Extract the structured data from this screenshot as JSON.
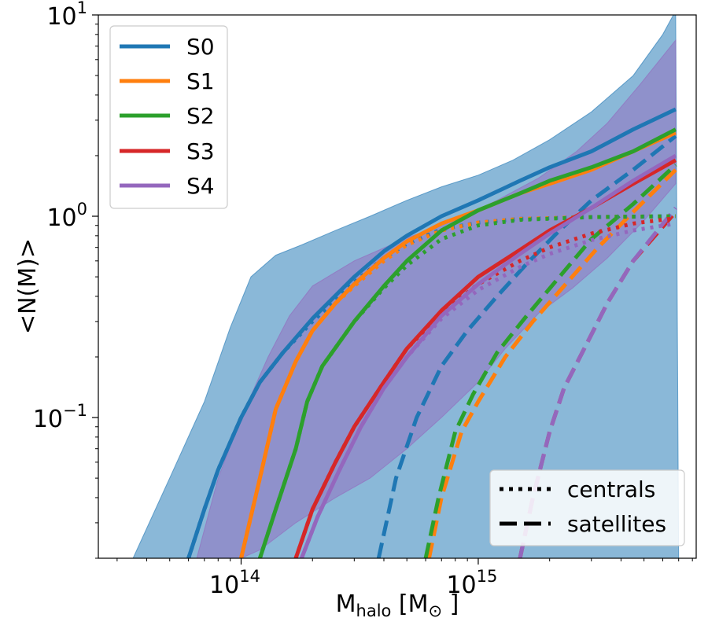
{
  "chart_data": {
    "type": "line",
    "title": "",
    "xlabel": {
      "main": "M",
      "sub": "halo",
      "unit_open": " [M",
      "unit_sub": "⊙",
      "unit_close": " ]"
    },
    "ylabel": "<N(M)>",
    "xscale": "log",
    "yscale": "log",
    "xlim": [
      25000000000000,
      8300000000000000
    ],
    "ylim": [
      0.02,
      10
    ],
    "x_ticks": [
      {
        "value": 100000000000000,
        "label_base": "10",
        "label_exp": "14"
      },
      {
        "value": 1000000000000000,
        "label_base": "10",
        "label_exp": "15"
      }
    ],
    "y_ticks": [
      {
        "value": 0.1,
        "label_base": "10",
        "label_exp": "−1"
      },
      {
        "value": 1,
        "label_base": "10",
        "label_exp": "0"
      },
      {
        "value": 10,
        "label_base": "10",
        "label_exp": "1"
      }
    ],
    "grid": false,
    "bands": [
      {
        "of": "S0",
        "color": "#1f77b4",
        "opacity": 0.52,
        "upper": [
          [
            35000000000000,
            0.02
          ],
          [
            50000000000000,
            0.05
          ],
          [
            70000000000000,
            0.12
          ],
          [
            90000000000000,
            0.28
          ],
          [
            110000000000000,
            0.5
          ],
          [
            140000000000000,
            0.64
          ],
          [
            180000000000000,
            0.72
          ],
          [
            250000000000000,
            0.85
          ],
          [
            350000000000000,
            1.0
          ],
          [
            500000000000000,
            1.2
          ],
          [
            700000000000000,
            1.4
          ],
          [
            1000000000000000,
            1.6
          ],
          [
            1400000000000000,
            1.9
          ],
          [
            2000000000000000,
            2.4
          ],
          [
            3000000000000000,
            3.3
          ],
          [
            4500000000000000,
            5.0
          ],
          [
            6000000000000000,
            8.0
          ],
          [
            6800000000000000,
            10.5
          ]
        ],
        "lower": [
          [
            7000000000000000,
            0.02
          ],
          [
            6800000000000000,
            0.02
          ]
        ]
      },
      {
        "of": "S4",
        "color": "#9467bd",
        "opacity": 0.48,
        "upper": [
          [
            65000000000000,
            0.02
          ],
          [
            80000000000000,
            0.05
          ],
          [
            100000000000000,
            0.1
          ],
          [
            130000000000000,
            0.2
          ],
          [
            160000000000000,
            0.32
          ],
          [
            200000000000000,
            0.45
          ],
          [
            300000000000000,
            0.6
          ],
          [
            500000000000000,
            0.78
          ],
          [
            800000000000000,
            0.96
          ],
          [
            1200000000000000,
            1.2
          ],
          [
            1800000000000000,
            1.55
          ],
          [
            2600000000000000,
            2.1
          ],
          [
            3500000000000000,
            2.9
          ],
          [
            4800000000000000,
            4.5
          ],
          [
            6800000000000000,
            7.5
          ]
        ],
        "lower": [
          [
            6800000000000000,
            1.45
          ],
          [
            5000000000000000,
            0.95
          ],
          [
            3500000000000000,
            0.62
          ],
          [
            2500000000000000,
            0.44
          ],
          [
            1800000000000000,
            0.33
          ],
          [
            1300000000000000,
            0.22
          ],
          [
            1000000000000000,
            0.15
          ],
          [
            700000000000000,
            0.1
          ],
          [
            500000000000000,
            0.07
          ],
          [
            350000000000000,
            0.05
          ],
          [
            250000000000000,
            0.04
          ],
          [
            170000000000000,
            0.03
          ],
          [
            120000000000000,
            0.022
          ],
          [
            100000000000000,
            0.02
          ]
        ]
      }
    ],
    "legend": {
      "placement": "upper left",
      "entries": [
        "S0",
        "S1",
        "S2",
        "S3",
        "S4"
      ]
    },
    "style_legend": {
      "placement": "lower right",
      "entries": [
        {
          "label": "centrals",
          "style": "dotted"
        },
        {
          "label": "satellites",
          "style": "dashed"
        }
      ]
    },
    "series": [
      {
        "name": "S0",
        "color": "#1f77b4",
        "total": [
          [
            60000000000000,
            0.02
          ],
          [
            70000000000000,
            0.035
          ],
          [
            80000000000000,
            0.055
          ],
          [
            100000000000000,
            0.1
          ],
          [
            120000000000000,
            0.15
          ],
          [
            150000000000000,
            0.21
          ],
          [
            200000000000000,
            0.31
          ],
          [
            300000000000000,
            0.5
          ],
          [
            400000000000000,
            0.67
          ],
          [
            500000000000000,
            0.8
          ],
          [
            700000000000000,
            1.0
          ],
          [
            1000000000000000,
            1.2
          ],
          [
            1500000000000000,
            1.5
          ],
          [
            2000000000000000,
            1.75
          ],
          [
            3000000000000000,
            2.1
          ],
          [
            4500000000000000,
            2.7
          ],
          [
            6800000000000000,
            3.4
          ]
        ],
        "centrals": [
          [
            60000000000000,
            0.02
          ],
          [
            70000000000000,
            0.035
          ],
          [
            80000000000000,
            0.055
          ],
          [
            100000000000000,
            0.1
          ],
          [
            120000000000000,
            0.15
          ],
          [
            150000000000000,
            0.21
          ],
          [
            200000000000000,
            0.3
          ],
          [
            300000000000000,
            0.47
          ],
          [
            400000000000000,
            0.62
          ],
          [
            500000000000000,
            0.73
          ],
          [
            700000000000000,
            0.86
          ],
          [
            1000000000000000,
            0.93
          ],
          [
            1500000000000000,
            0.97
          ],
          [
            3000000000000000,
            0.99
          ],
          [
            6800000000000000,
            1.0
          ]
        ],
        "satellites": [
          [
            380000000000000,
            0.02
          ],
          [
            450000000000000,
            0.05
          ],
          [
            550000000000000,
            0.1
          ],
          [
            700000000000000,
            0.18
          ],
          [
            900000000000000,
            0.27
          ],
          [
            1200000000000000,
            0.4
          ],
          [
            1600000000000000,
            0.58
          ],
          [
            2200000000000000,
            0.85
          ],
          [
            3000000000000000,
            1.2
          ],
          [
            4500000000000000,
            1.7
          ],
          [
            6800000000000000,
            2.5
          ]
        ]
      },
      {
        "name": "S1",
        "color": "#ff7f0e",
        "total": [
          [
            100000000000000,
            0.02
          ],
          [
            120000000000000,
            0.05
          ],
          [
            140000000000000,
            0.11
          ],
          [
            170000000000000,
            0.19
          ],
          [
            200000000000000,
            0.27
          ],
          [
            250000000000000,
            0.37
          ],
          [
            300000000000000,
            0.46
          ],
          [
            400000000000000,
            0.62
          ],
          [
            500000000000000,
            0.75
          ],
          [
            700000000000000,
            0.92
          ],
          [
            1000000000000000,
            1.07
          ],
          [
            1500000000000000,
            1.3
          ],
          [
            2000000000000000,
            1.45
          ],
          [
            3000000000000000,
            1.7
          ],
          [
            4500000000000000,
            2.1
          ],
          [
            6800000000000000,
            2.6
          ]
        ],
        "centrals": [
          [
            100000000000000,
            0.02
          ],
          [
            120000000000000,
            0.05
          ],
          [
            140000000000000,
            0.11
          ],
          [
            170000000000000,
            0.19
          ],
          [
            200000000000000,
            0.27
          ],
          [
            250000000000000,
            0.37
          ],
          [
            300000000000000,
            0.45
          ],
          [
            400000000000000,
            0.6
          ],
          [
            500000000000000,
            0.72
          ],
          [
            700000000000000,
            0.85
          ],
          [
            1000000000000000,
            0.93
          ],
          [
            1500000000000000,
            0.97
          ],
          [
            3000000000000000,
            0.99
          ],
          [
            6800000000000000,
            1.0
          ]
        ],
        "satellites": [
          [
            620000000000000,
            0.02
          ],
          [
            700000000000000,
            0.04
          ],
          [
            850000000000000,
            0.085
          ],
          [
            1000000000000000,
            0.12
          ],
          [
            1300000000000000,
            0.2
          ],
          [
            1700000000000000,
            0.3
          ],
          [
            2300000000000000,
            0.45
          ],
          [
            3200000000000000,
            0.7
          ],
          [
            4500000000000000,
            1.05
          ],
          [
            6800000000000000,
            1.7
          ]
        ]
      },
      {
        "name": "S2",
        "color": "#2ca02c",
        "total": [
          [
            120000000000000,
            0.02
          ],
          [
            140000000000000,
            0.035
          ],
          [
            170000000000000,
            0.07
          ],
          [
            190000000000000,
            0.12
          ],
          [
            220000000000000,
            0.18
          ],
          [
            300000000000000,
            0.3
          ],
          [
            400000000000000,
            0.45
          ],
          [
            500000000000000,
            0.6
          ],
          [
            700000000000000,
            0.85
          ],
          [
            1000000000000000,
            1.07
          ],
          [
            1500000000000000,
            1.3
          ],
          [
            2000000000000000,
            1.5
          ],
          [
            3000000000000000,
            1.75
          ],
          [
            4500000000000000,
            2.1
          ],
          [
            6800000000000000,
            2.7
          ]
        ],
        "centrals": [
          [
            120000000000000,
            0.02
          ],
          [
            140000000000000,
            0.035
          ],
          [
            170000000000000,
            0.07
          ],
          [
            190000000000000,
            0.12
          ],
          [
            220000000000000,
            0.18
          ],
          [
            300000000000000,
            0.3
          ],
          [
            400000000000000,
            0.44
          ],
          [
            500000000000000,
            0.57
          ],
          [
            700000000000000,
            0.77
          ],
          [
            1000000000000000,
            0.9
          ],
          [
            1500000000000000,
            0.96
          ],
          [
            3000000000000000,
            0.99
          ],
          [
            6800000000000000,
            1.0
          ]
        ],
        "satellites": [
          [
            600000000000000,
            0.02
          ],
          [
            680000000000000,
            0.04
          ],
          [
            800000000000000,
            0.085
          ],
          [
            950000000000000,
            0.13
          ],
          [
            1200000000000000,
            0.21
          ],
          [
            1600000000000000,
            0.32
          ],
          [
            2200000000000000,
            0.5
          ],
          [
            3000000000000000,
            0.77
          ],
          [
            4500000000000000,
            1.15
          ],
          [
            6800000000000000,
            1.8
          ]
        ]
      },
      {
        "name": "S3",
        "color": "#d62728",
        "total": [
          [
            170000000000000,
            0.02
          ],
          [
            200000000000000,
            0.035
          ],
          [
            250000000000000,
            0.06
          ],
          [
            300000000000000,
            0.09
          ],
          [
            400000000000000,
            0.15
          ],
          [
            500000000000000,
            0.22
          ],
          [
            700000000000000,
            0.34
          ],
          [
            1000000000000000,
            0.5
          ],
          [
            1500000000000000,
            0.68
          ],
          [
            2000000000000000,
            0.85
          ],
          [
            3000000000000000,
            1.1
          ],
          [
            4500000000000000,
            1.45
          ],
          [
            6800000000000000,
            1.9
          ]
        ],
        "centrals": [
          [
            170000000000000,
            0.02
          ],
          [
            200000000000000,
            0.035
          ],
          [
            250000000000000,
            0.06
          ],
          [
            300000000000000,
            0.09
          ],
          [
            400000000000000,
            0.15
          ],
          [
            500000000000000,
            0.22
          ],
          [
            700000000000000,
            0.33
          ],
          [
            1000000000000000,
            0.46
          ],
          [
            1500000000000000,
            0.6
          ],
          [
            2000000000000000,
            0.7
          ],
          [
            3000000000000000,
            0.82
          ],
          [
            4500000000000000,
            0.92
          ],
          [
            6800000000000000,
            0.98
          ]
        ],
        "satellites": [
          [
            1500000000000000,
            0.02
          ],
          [
            1700000000000000,
            0.04
          ],
          [
            2000000000000000,
            0.085
          ],
          [
            2300000000000000,
            0.14
          ],
          [
            2800000000000000,
            0.22
          ],
          [
            3500000000000000,
            0.37
          ],
          [
            4500000000000000,
            0.6
          ],
          [
            6800000000000000,
            1.05
          ]
        ]
      },
      {
        "name": "S4",
        "color": "#9467bd",
        "total": [
          [
            180000000000000,
            0.02
          ],
          [
            210000000000000,
            0.032
          ],
          [
            260000000000000,
            0.055
          ],
          [
            320000000000000,
            0.09
          ],
          [
            400000000000000,
            0.14
          ],
          [
            500000000000000,
            0.2
          ],
          [
            700000000000000,
            0.32
          ],
          [
            1000000000000000,
            0.46
          ],
          [
            1500000000000000,
            0.65
          ],
          [
            2000000000000000,
            0.82
          ],
          [
            3000000000000000,
            1.1
          ],
          [
            4500000000000000,
            1.5
          ],
          [
            6800000000000000,
            2.0
          ]
        ],
        "centrals": [
          [
            180000000000000,
            0.02
          ],
          [
            210000000000000,
            0.032
          ],
          [
            260000000000000,
            0.055
          ],
          [
            320000000000000,
            0.09
          ],
          [
            400000000000000,
            0.14
          ],
          [
            500000000000000,
            0.2
          ],
          [
            700000000000000,
            0.31
          ],
          [
            1000000000000000,
            0.43
          ],
          [
            1500000000000000,
            0.56
          ],
          [
            2000000000000000,
            0.65
          ],
          [
            3000000000000000,
            0.76
          ],
          [
            4500000000000000,
            0.85
          ],
          [
            6800000000000000,
            0.92
          ]
        ],
        "satellites": [
          [
            1500000000000000,
            0.02
          ],
          [
            1700000000000000,
            0.04
          ],
          [
            2000000000000000,
            0.085
          ],
          [
            2300000000000000,
            0.14
          ],
          [
            2800000000000000,
            0.22
          ],
          [
            3500000000000000,
            0.37
          ],
          [
            4500000000000000,
            0.6
          ],
          [
            6800000000000000,
            1.1
          ]
        ]
      }
    ]
  }
}
